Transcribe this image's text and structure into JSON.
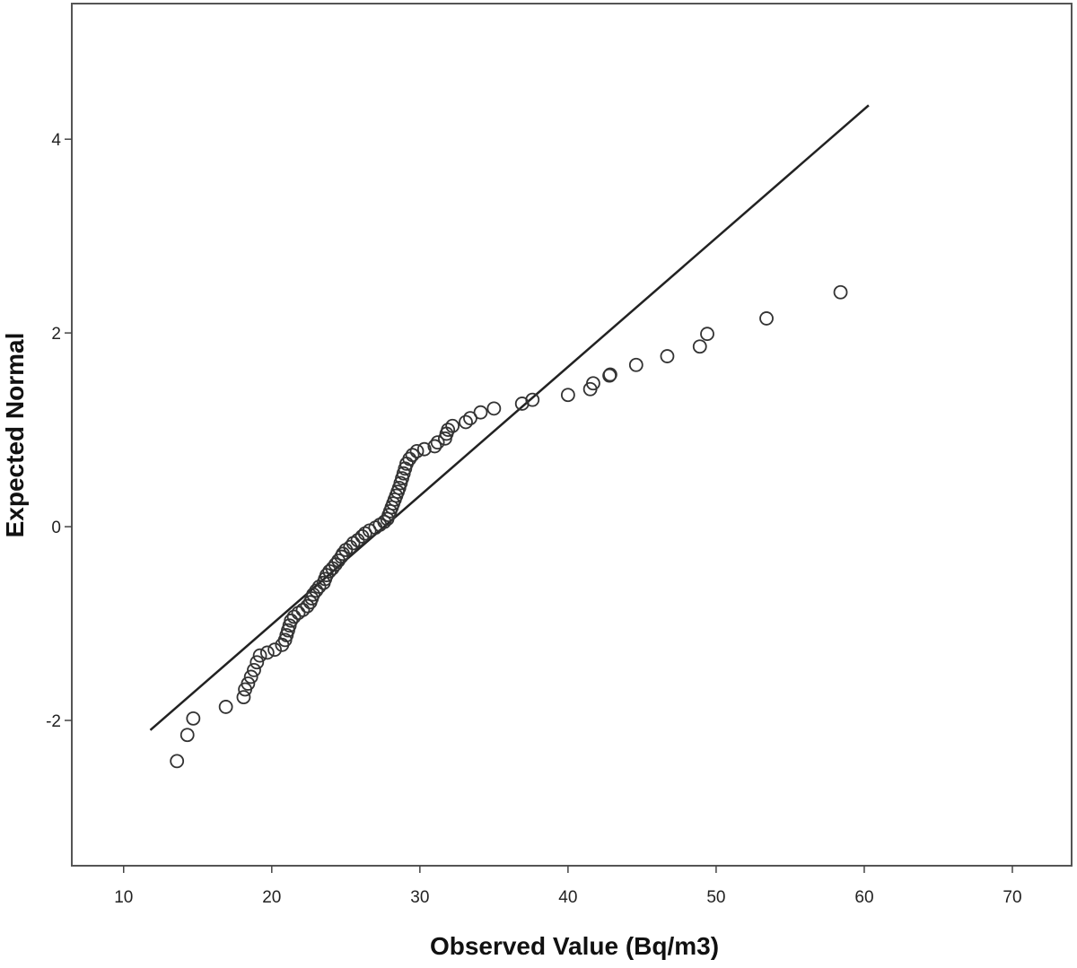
{
  "chart_data": {
    "type": "scatter",
    "subtype": "normal-qq-plot",
    "title": "",
    "xlabel": "Observed Value (Bq/m3)",
    "ylabel": "Expected Normal",
    "xlim": [
      6.5,
      74
    ],
    "ylim": [
      -3.5,
      5.4
    ],
    "x_ticks": [
      10,
      20,
      30,
      40,
      50,
      60,
      70
    ],
    "y_ticks": [
      -2,
      0,
      2,
      4
    ],
    "grid": false,
    "legend": "none",
    "marker": "open-circle",
    "colors": {
      "marker": "#333333",
      "line": "#222222",
      "frame": "#555555",
      "background": "#ffffff"
    },
    "reference_line": {
      "x": [
        11.8,
        60.3
      ],
      "y": [
        -2.1,
        4.35
      ]
    },
    "points": [
      {
        "x": 13.6,
        "y": -2.42
      },
      {
        "x": 14.3,
        "y": -2.15
      },
      {
        "x": 14.7,
        "y": -1.98
      },
      {
        "x": 16.9,
        "y": -1.86
      },
      {
        "x": 18.1,
        "y": -1.76
      },
      {
        "x": 18.2,
        "y": -1.68
      },
      {
        "x": 18.4,
        "y": -1.62
      },
      {
        "x": 18.6,
        "y": -1.55
      },
      {
        "x": 18.8,
        "y": -1.48
      },
      {
        "x": 19.0,
        "y": -1.4
      },
      {
        "x": 19.2,
        "y": -1.33
      },
      {
        "x": 19.7,
        "y": -1.3
      },
      {
        "x": 20.2,
        "y": -1.27
      },
      {
        "x": 20.7,
        "y": -1.22
      },
      {
        "x": 20.9,
        "y": -1.17
      },
      {
        "x": 21.0,
        "y": -1.12
      },
      {
        "x": 21.1,
        "y": -1.07
      },
      {
        "x": 21.2,
        "y": -1.02
      },
      {
        "x": 21.3,
        "y": -0.97
      },
      {
        "x": 21.5,
        "y": -0.93
      },
      {
        "x": 21.8,
        "y": -0.89
      },
      {
        "x": 22.1,
        "y": -0.86
      },
      {
        "x": 22.4,
        "y": -0.82
      },
      {
        "x": 22.6,
        "y": -0.78
      },
      {
        "x": 22.7,
        "y": -0.74
      },
      {
        "x": 22.8,
        "y": -0.7
      },
      {
        "x": 23.0,
        "y": -0.66
      },
      {
        "x": 23.2,
        "y": -0.62
      },
      {
        "x": 23.5,
        "y": -0.58
      },
      {
        "x": 23.6,
        "y": -0.54
      },
      {
        "x": 23.7,
        "y": -0.5
      },
      {
        "x": 23.9,
        "y": -0.46
      },
      {
        "x": 24.1,
        "y": -0.43
      },
      {
        "x": 24.3,
        "y": -0.39
      },
      {
        "x": 24.5,
        "y": -0.35
      },
      {
        "x": 24.7,
        "y": -0.31
      },
      {
        "x": 24.8,
        "y": -0.28
      },
      {
        "x": 25.0,
        "y": -0.24
      },
      {
        "x": 25.3,
        "y": -0.21
      },
      {
        "x": 25.5,
        "y": -0.17
      },
      {
        "x": 25.8,
        "y": -0.14
      },
      {
        "x": 26.1,
        "y": -0.1
      },
      {
        "x": 26.3,
        "y": -0.07
      },
      {
        "x": 26.6,
        "y": -0.04
      },
      {
        "x": 27.0,
        "y": -0.01
      },
      {
        "x": 27.3,
        "y": 0.02
      },
      {
        "x": 27.6,
        "y": 0.05
      },
      {
        "x": 27.8,
        "y": 0.08
      },
      {
        "x": 27.9,
        "y": 0.12
      },
      {
        "x": 28.0,
        "y": 0.16
      },
      {
        "x": 28.1,
        "y": 0.2
      },
      {
        "x": 28.2,
        "y": 0.24
      },
      {
        "x": 28.3,
        "y": 0.28
      },
      {
        "x": 28.4,
        "y": 0.32
      },
      {
        "x": 28.5,
        "y": 0.36
      },
      {
        "x": 28.6,
        "y": 0.4
      },
      {
        "x": 28.7,
        "y": 0.45
      },
      {
        "x": 28.8,
        "y": 0.5
      },
      {
        "x": 28.9,
        "y": 0.55
      },
      {
        "x": 29.0,
        "y": 0.6
      },
      {
        "x": 29.1,
        "y": 0.65
      },
      {
        "x": 29.3,
        "y": 0.7
      },
      {
        "x": 29.5,
        "y": 0.74
      },
      {
        "x": 29.8,
        "y": 0.78
      },
      {
        "x": 30.3,
        "y": 0.8
      },
      {
        "x": 31.0,
        "y": 0.83
      },
      {
        "x": 31.2,
        "y": 0.87
      },
      {
        "x": 31.7,
        "y": 0.91
      },
      {
        "x": 31.8,
        "y": 0.96
      },
      {
        "x": 31.9,
        "y": 1.0
      },
      {
        "x": 32.2,
        "y": 1.04
      },
      {
        "x": 33.1,
        "y": 1.08
      },
      {
        "x": 33.4,
        "y": 1.12
      },
      {
        "x": 34.1,
        "y": 1.18
      },
      {
        "x": 35.0,
        "y": 1.22
      },
      {
        "x": 36.9,
        "y": 1.27
      },
      {
        "x": 37.6,
        "y": 1.31
      },
      {
        "x": 40.0,
        "y": 1.36
      },
      {
        "x": 41.5,
        "y": 1.42
      },
      {
        "x": 41.7,
        "y": 1.48
      },
      {
        "x": 42.8,
        "y": 1.56
      },
      {
        "x": 42.85,
        "y": 1.57
      },
      {
        "x": 44.6,
        "y": 1.67
      },
      {
        "x": 46.7,
        "y": 1.76
      },
      {
        "x": 48.9,
        "y": 1.86
      },
      {
        "x": 49.4,
        "y": 1.99
      },
      {
        "x": 53.4,
        "y": 2.15
      },
      {
        "x": 58.4,
        "y": 2.42
      }
    ]
  }
}
